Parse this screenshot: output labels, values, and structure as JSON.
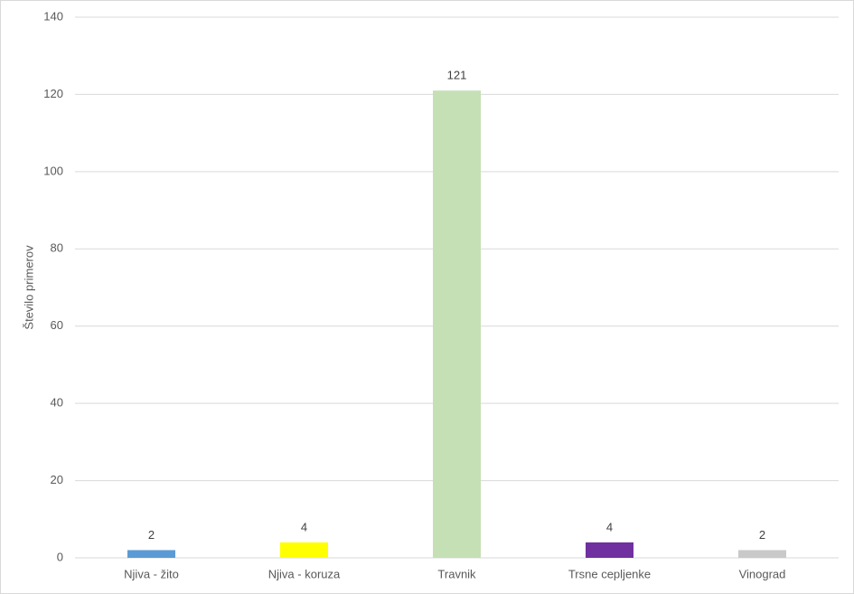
{
  "chart_data": {
    "type": "bar",
    "y_label": "Število primerov",
    "categories": [
      "Njiva - žito",
      "Njiva - koruza",
      "Travnik",
      "Trsne cepljenke",
      "Vinograd"
    ],
    "values": [
      2,
      4,
      121,
      4,
      2
    ],
    "colors": [
      "#5b9bd5",
      "#ffff00",
      "#c5e0b4",
      "#7030a0",
      "#c9c9c9"
    ],
    "ylim": [
      0,
      140
    ],
    "yticks": [
      0,
      20,
      40,
      60,
      80,
      100,
      120,
      140
    ],
    "grid": true
  }
}
